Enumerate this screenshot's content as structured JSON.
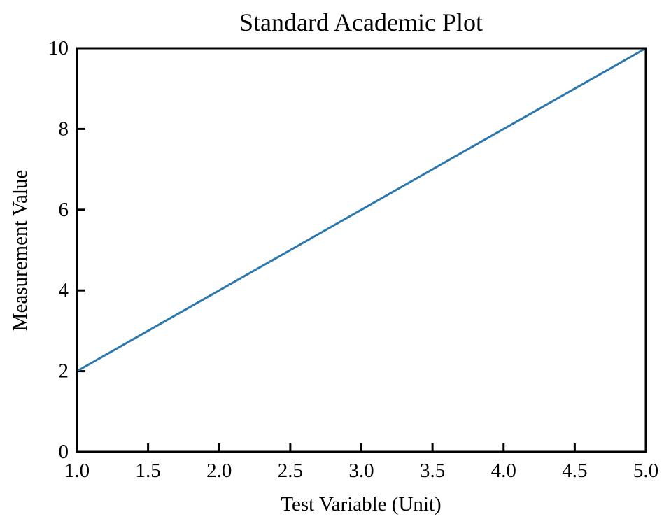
{
  "chart_data": {
    "type": "line",
    "title": "Standard Academic Plot",
    "xlabel": "Test Variable (Unit)",
    "ylabel": "Measurement Value",
    "xlim": [
      1.0,
      5.0
    ],
    "ylim": [
      0,
      10
    ],
    "xticks": [
      "1.0",
      "1.5",
      "2.0",
      "2.5",
      "3.0",
      "3.5",
      "4.0",
      "4.5",
      "5.0"
    ],
    "yticks": [
      "0",
      "2",
      "4",
      "6",
      "8",
      "10"
    ],
    "grid": false,
    "legend": null,
    "series": [
      {
        "color": "#2b78ae",
        "x": [
          1.0,
          5.0
        ],
        "y": [
          2,
          10
        ]
      }
    ]
  }
}
